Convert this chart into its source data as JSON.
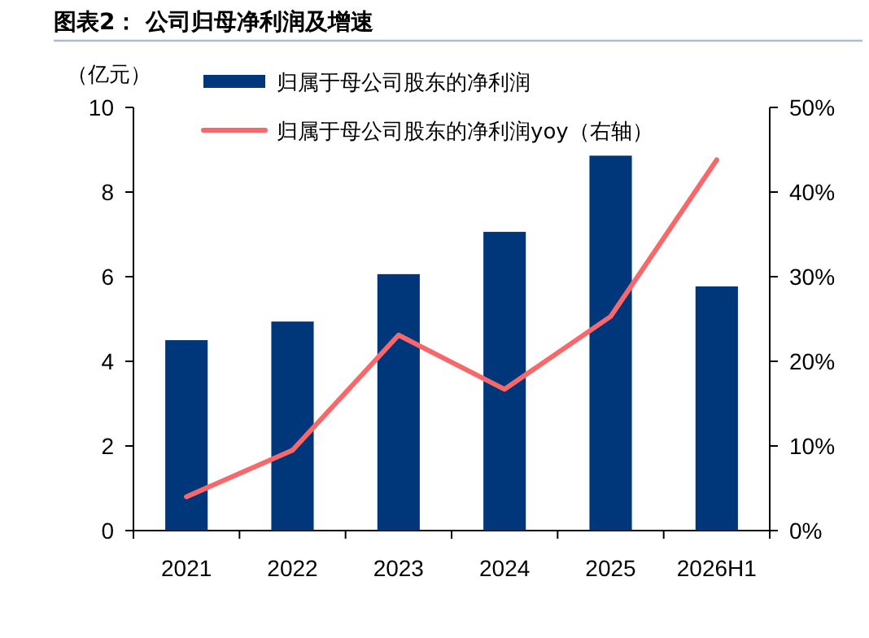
{
  "chart_data": {
    "type": "bar",
    "title": "图表2：  公司归母净利润及增速",
    "ylabel": "（亿元）",
    "categories": [
      "2021",
      "2022",
      "2023",
      "2024",
      "2025",
      "2026H1"
    ],
    "series": [
      {
        "name": "归属于母公司股东的净利润",
        "color": "#00377a",
        "values": [
          4.5,
          4.94,
          6.06,
          7.06,
          8.86,
          5.77
        ]
      },
      {
        "name": "归属于母公司股东的净利润yoy（右轴）",
        "type": "line",
        "axis": "y2",
        "color": "#f8686b",
        "values": [
          4.0,
          9.5,
          23.1,
          16.7,
          25.3,
          43.8
        ]
      }
    ],
    "ylim": [
      0,
      10
    ],
    "yticks": [
      0,
      2,
      4,
      6,
      8,
      10
    ],
    "y2lim": [
      0,
      50
    ],
    "y2ticks": [
      {
        "value": 0,
        "label": "0%"
      },
      {
        "value": 10,
        "label": "10%"
      },
      {
        "value": 20,
        "label": "20%"
      },
      {
        "value": 30,
        "label": "30%"
      },
      {
        "value": 40,
        "label": "40%"
      },
      {
        "value": 50,
        "label": "50%"
      }
    ],
    "legend": "top left",
    "grid": false,
    "marker": "none",
    "line_style": "solid"
  }
}
